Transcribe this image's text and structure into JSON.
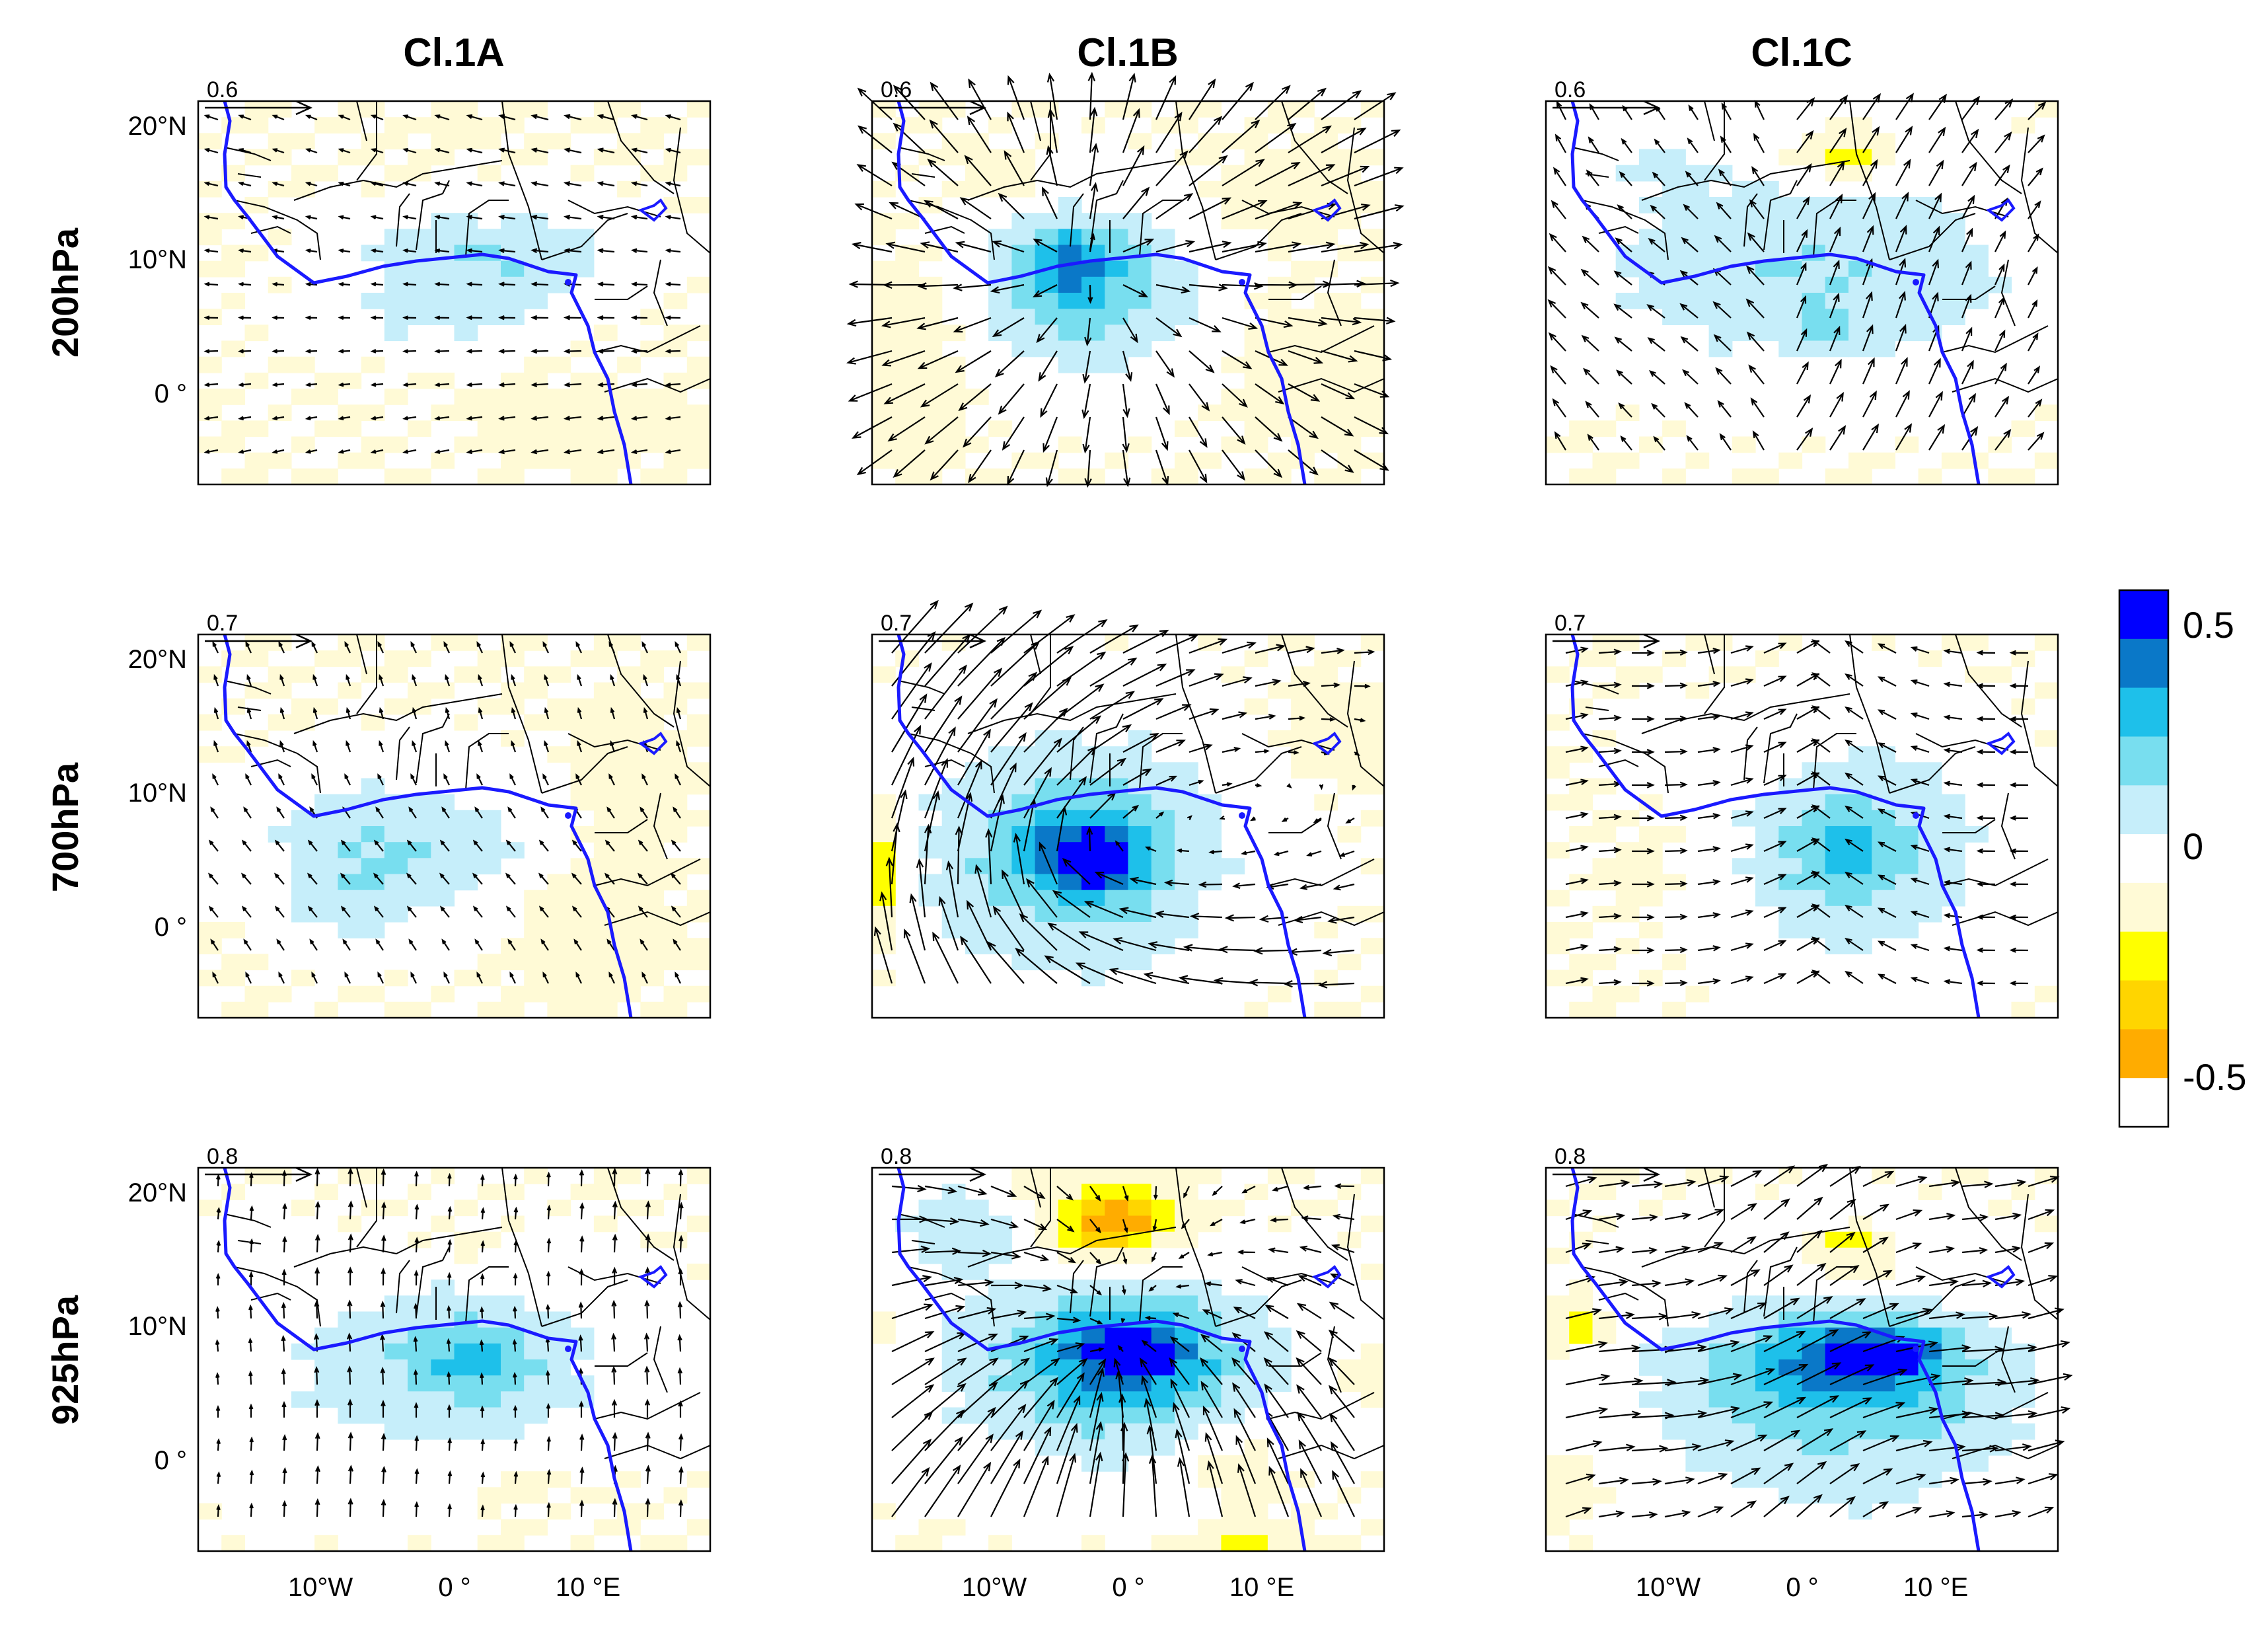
{
  "columns": [
    "Cl.1A",
    "Cl.1B",
    "Cl.1C"
  ],
  "rows": [
    "200hPa",
    "700hPa",
    "925hPa"
  ],
  "reference_vectors": [
    "0.6",
    "0.7",
    "0.8"
  ],
  "lat_ticks": [
    "20°N",
    "10°N",
    "0 °"
  ],
  "lon_ticks": [
    "10°W",
    "0 °",
    "10 °E"
  ],
  "colorbar": {
    "tick_labels": [
      "0.5",
      "0",
      "-0.5"
    ],
    "levels": [
      {
        "range": "above 0.5",
        "color": "#0000ff"
      },
      {
        "range": "0.4 to 0.5",
        "color": "#0a78c8"
      },
      {
        "range": "0.3 to 0.4",
        "color": "#1ec0ea"
      },
      {
        "range": "0.2 to 0.3",
        "color": "#78deef"
      },
      {
        "range": "0.1 to 0.2",
        "color": "#c6eefa"
      },
      {
        "range": "0 to 0.1",
        "color": "#ffffff"
      },
      {
        "range": "-0.1 to 0",
        "color": "#fffad6"
      },
      {
        "range": "-0.2 to -0.1",
        "color": "#ffff00"
      },
      {
        "range": "-0.3 to -0.2",
        "color": "#ffd500"
      },
      {
        "range": "-0.4 to -0.3",
        "color": "#ffac00"
      },
      {
        "range": "below -0.5",
        "color": "#ffffff"
      }
    ]
  },
  "colors": {
    "coastline": "#1a1aff",
    "borders": "#000000",
    "vectors": "#000000"
  }
}
